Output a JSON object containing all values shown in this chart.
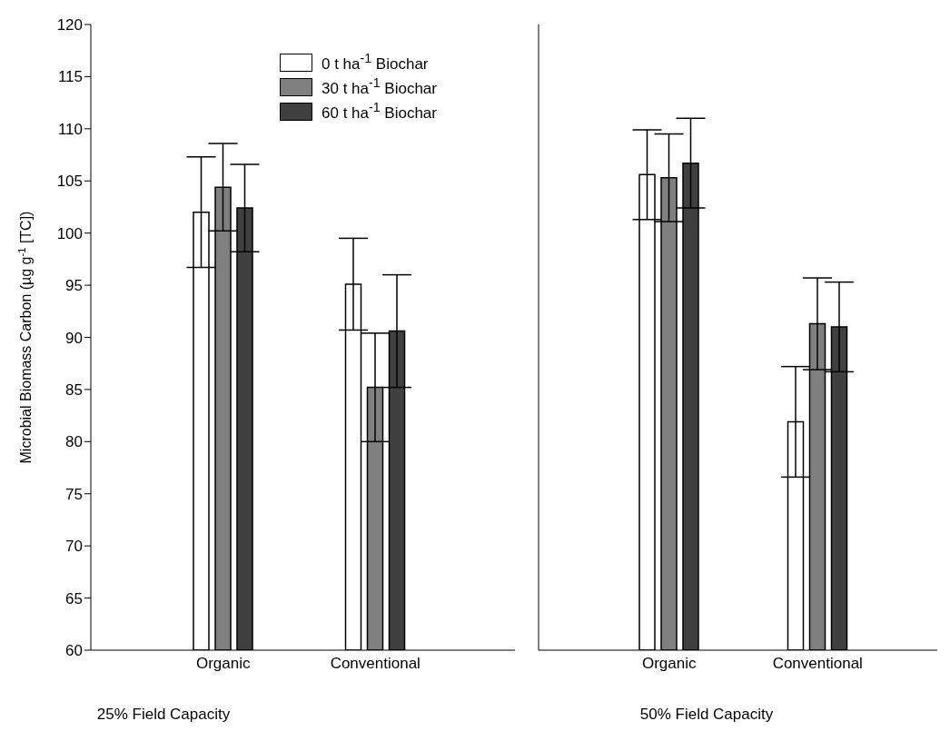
{
  "chart_data": [
    {
      "type": "bar",
      "xlabel": "25% Field Capacity",
      "ylabel": "Microbial Biomass Carbon (µg g$^{-1}$ [TC])",
      "categories": [
        "Organic",
        "Conventional"
      ],
      "series": [
        {
          "name": "0 t ha$^{-1}$ Biochar",
          "color": "#ffffff",
          "values": [
            102.0,
            95.1
          ],
          "errors": [
            5.3,
            4.4
          ]
        },
        {
          "name": "30 t ha$^{-1}$ Biochar",
          "color": "#808080",
          "values": [
            104.4,
            85.2
          ],
          "errors": [
            4.2,
            5.2
          ]
        },
        {
          "name": "60 t ha$^{-1}$ Biochar",
          "color": "#404040",
          "values": [
            102.4,
            90.6
          ],
          "errors": [
            4.2,
            5.4
          ]
        }
      ],
      "ylim": [
        60,
        120
      ],
      "yticks": [
        60,
        65,
        70,
        75,
        80,
        85,
        90,
        95,
        100,
        105,
        110,
        115,
        120
      ],
      "grid": false,
      "legend": "top right"
    },
    {
      "type": "bar",
      "xlabel": "50% Field Capacity",
      "categories": [
        "Organic",
        "Conventional"
      ],
      "series": [
        {
          "color": "#ffffff",
          "values": [
            105.6,
            81.9
          ],
          "errors": [
            4.3,
            5.3
          ]
        },
        {
          "color": "#808080",
          "values": [
            105.3,
            91.3
          ],
          "errors": [
            4.2,
            4.4
          ]
        },
        {
          "color": "#404040",
          "values": [
            106.7,
            91.0
          ],
          "errors": [
            4.3,
            4.3
          ]
        }
      ],
      "ylim": [
        60,
        120
      ],
      "yticks": [
        60,
        65,
        70,
        75,
        80,
        85,
        90,
        95,
        100,
        105,
        110,
        115,
        120
      ],
      "grid": false,
      "legend": false,
      "tick_labels": "x"
    }
  ]
}
